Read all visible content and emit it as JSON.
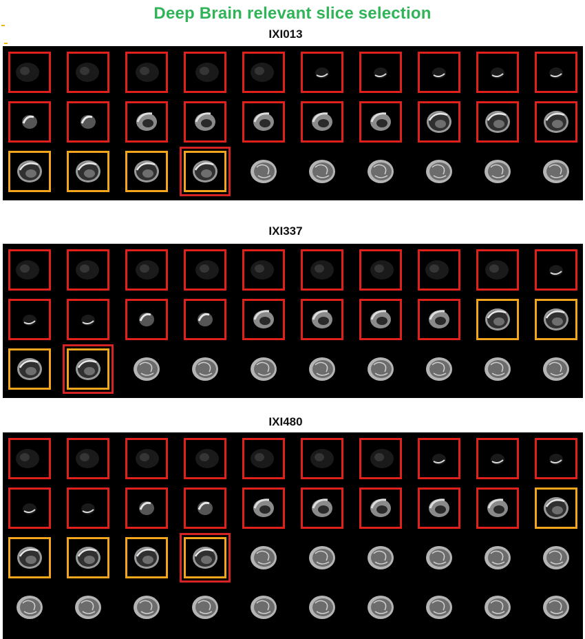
{
  "title": "Deep Brain relevant slice selection",
  "colors": {
    "title": "#2fb457",
    "irrelevant_box": "#e0211b",
    "relevant_box": "#f3a51c",
    "selected_outline": "#d62323",
    "background": "#000000"
  },
  "subjects": [
    {
      "id": "IXI013",
      "rows": 3,
      "cols": 10,
      "slices": [
        {
          "mark": "red",
          "stage": 0
        },
        {
          "mark": "red",
          "stage": 0
        },
        {
          "mark": "red",
          "stage": 0
        },
        {
          "mark": "red",
          "stage": 0
        },
        {
          "mark": "red",
          "stage": 0
        },
        {
          "mark": "red",
          "stage": 1
        },
        {
          "mark": "red",
          "stage": 1
        },
        {
          "mark": "red",
          "stage": 1
        },
        {
          "mark": "red",
          "stage": 1
        },
        {
          "mark": "red",
          "stage": 1
        },
        {
          "mark": "red",
          "stage": 2
        },
        {
          "mark": "red",
          "stage": 2
        },
        {
          "mark": "red",
          "stage": 3
        },
        {
          "mark": "red",
          "stage": 3
        },
        {
          "mark": "red",
          "stage": 3
        },
        {
          "mark": "red",
          "stage": 3
        },
        {
          "mark": "red",
          "stage": 3
        },
        {
          "mark": "red",
          "stage": 4
        },
        {
          "mark": "red",
          "stage": 4
        },
        {
          "mark": "red",
          "stage": 4
        },
        {
          "mark": "orange",
          "stage": 4
        },
        {
          "mark": "orange",
          "stage": 4
        },
        {
          "mark": "orange",
          "stage": 4
        },
        {
          "mark": "selected",
          "stage": 4
        },
        {
          "mark": "none",
          "stage": 5
        },
        {
          "mark": "none",
          "stage": 5
        },
        {
          "mark": "none",
          "stage": 5
        },
        {
          "mark": "none",
          "stage": 5
        },
        {
          "mark": "none",
          "stage": 5
        },
        {
          "mark": "none",
          "stage": 5
        }
      ]
    },
    {
      "id": "IXI337",
      "rows": 3,
      "cols": 10,
      "slices": [
        {
          "mark": "red",
          "stage": 0
        },
        {
          "mark": "red",
          "stage": 0
        },
        {
          "mark": "red",
          "stage": 0
        },
        {
          "mark": "red",
          "stage": 0
        },
        {
          "mark": "red",
          "stage": 0
        },
        {
          "mark": "red",
          "stage": 0
        },
        {
          "mark": "red",
          "stage": 0
        },
        {
          "mark": "red",
          "stage": 0
        },
        {
          "mark": "red",
          "stage": 0
        },
        {
          "mark": "red",
          "stage": 1
        },
        {
          "mark": "red",
          "stage": 1
        },
        {
          "mark": "red",
          "stage": 1
        },
        {
          "mark": "red",
          "stage": 2
        },
        {
          "mark": "red",
          "stage": 2
        },
        {
          "mark": "red",
          "stage": 3
        },
        {
          "mark": "red",
          "stage": 3
        },
        {
          "mark": "red",
          "stage": 3
        },
        {
          "mark": "red",
          "stage": 3
        },
        {
          "mark": "orange",
          "stage": 4
        },
        {
          "mark": "orange",
          "stage": 4
        },
        {
          "mark": "orange",
          "stage": 4
        },
        {
          "mark": "selected",
          "stage": 4
        },
        {
          "mark": "none",
          "stage": 5
        },
        {
          "mark": "none",
          "stage": 5
        },
        {
          "mark": "none",
          "stage": 5
        },
        {
          "mark": "none",
          "stage": 5
        },
        {
          "mark": "none",
          "stage": 5
        },
        {
          "mark": "none",
          "stage": 5
        },
        {
          "mark": "none",
          "stage": 5
        },
        {
          "mark": "none",
          "stage": 5
        }
      ]
    },
    {
      "id": "IXI480",
      "rows": 4,
      "cols": 10,
      "slices": [
        {
          "mark": "red",
          "stage": 0
        },
        {
          "mark": "red",
          "stage": 0
        },
        {
          "mark": "red",
          "stage": 0
        },
        {
          "mark": "red",
          "stage": 0
        },
        {
          "mark": "red",
          "stage": 0
        },
        {
          "mark": "red",
          "stage": 0
        },
        {
          "mark": "red",
          "stage": 0
        },
        {
          "mark": "red",
          "stage": 1
        },
        {
          "mark": "red",
          "stage": 1
        },
        {
          "mark": "red",
          "stage": 1
        },
        {
          "mark": "red",
          "stage": 1
        },
        {
          "mark": "red",
          "stage": 1
        },
        {
          "mark": "red",
          "stage": 2
        },
        {
          "mark": "red",
          "stage": 2
        },
        {
          "mark": "red",
          "stage": 3
        },
        {
          "mark": "red",
          "stage": 3
        },
        {
          "mark": "red",
          "stage": 3
        },
        {
          "mark": "red",
          "stage": 3
        },
        {
          "mark": "red",
          "stage": 3
        },
        {
          "mark": "orange",
          "stage": 4
        },
        {
          "mark": "orange",
          "stage": 4
        },
        {
          "mark": "orange",
          "stage": 4
        },
        {
          "mark": "orange",
          "stage": 4
        },
        {
          "mark": "selected",
          "stage": 4
        },
        {
          "mark": "none",
          "stage": 5
        },
        {
          "mark": "none",
          "stage": 5
        },
        {
          "mark": "none",
          "stage": 5
        },
        {
          "mark": "none",
          "stage": 5
        },
        {
          "mark": "none",
          "stage": 5
        },
        {
          "mark": "none",
          "stage": 5
        },
        {
          "mark": "none",
          "stage": 5
        },
        {
          "mark": "none",
          "stage": 5
        },
        {
          "mark": "none",
          "stage": 5
        },
        {
          "mark": "none",
          "stage": 5
        },
        {
          "mark": "none",
          "stage": 5
        },
        {
          "mark": "none",
          "stage": 5
        },
        {
          "mark": "none",
          "stage": 5
        },
        {
          "mark": "none",
          "stage": 5
        },
        {
          "mark": "none",
          "stage": 5
        },
        {
          "mark": "none",
          "stage": 5
        }
      ]
    }
  ]
}
